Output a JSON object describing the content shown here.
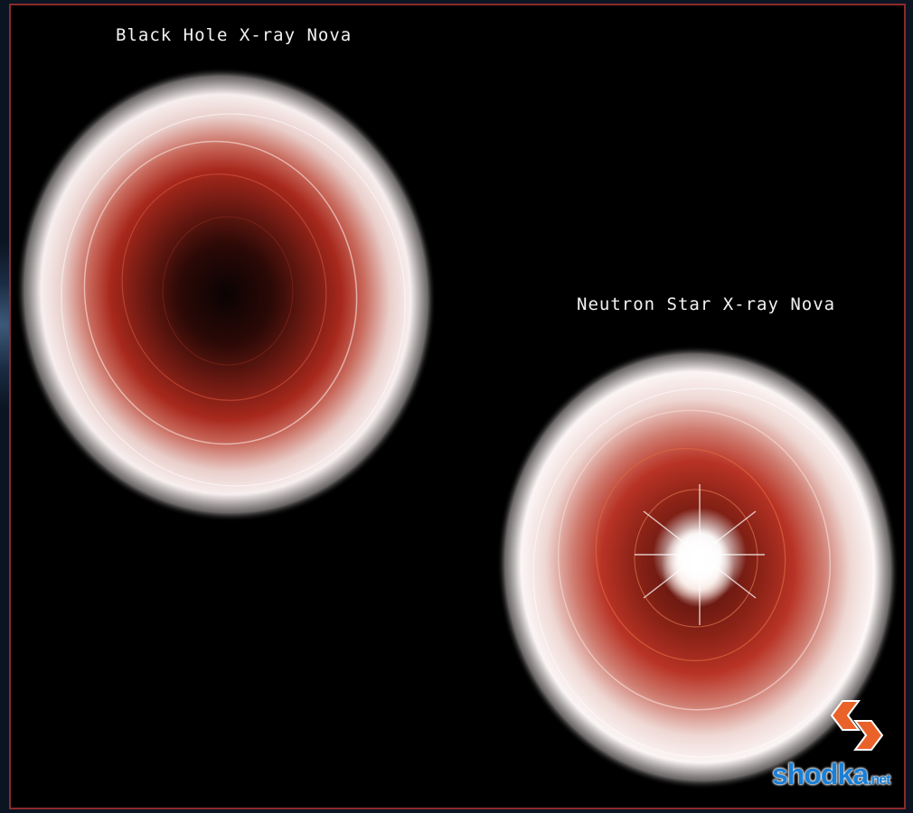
{
  "labels": {
    "black_hole": "Black Hole X-ray Nova",
    "neutron_star": "Neutron Star X-ray Nova"
  },
  "logo": {
    "name": "shodka",
    "suffix": ".net",
    "icon": "chevron-arrow-icon"
  },
  "colors": {
    "frame": "#8b2a2a",
    "disk_outer": "#f5eaea",
    "disk_mid": "#c0392b",
    "disk_inner": "#5a1510",
    "logo_blue": "#1a7fd6",
    "logo_orange": "#e8622a"
  }
}
